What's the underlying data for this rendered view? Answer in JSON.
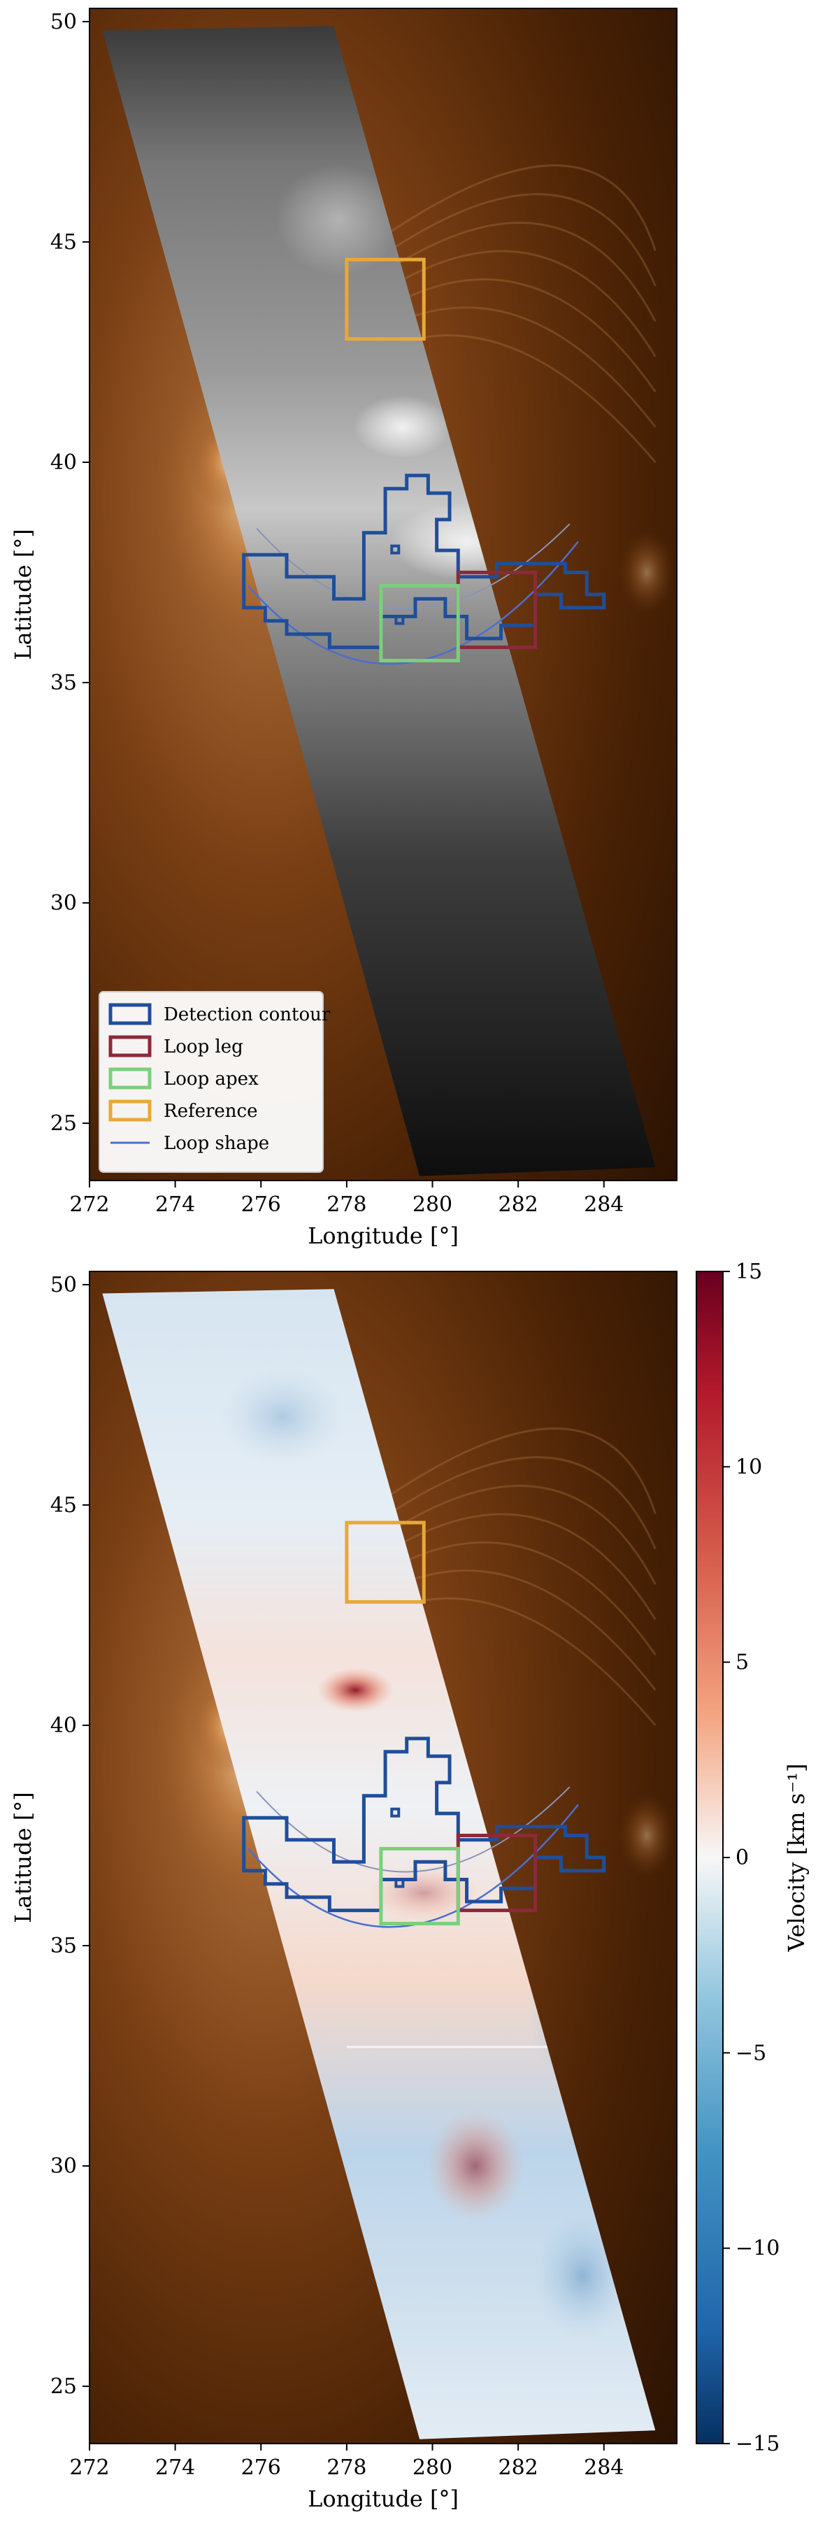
{
  "chart_data": [
    {
      "type": "heatmap",
      "panel": "intensity",
      "xlabel": "Longitude [°]",
      "ylabel": "Latitude [°]",
      "xlim": [
        272,
        285.7
      ],
      "ylim": [
        23.7,
        50.3
      ],
      "xticks": [
        272,
        274,
        276,
        278,
        280,
        282,
        284
      ],
      "yticks": [
        25,
        30,
        35,
        40,
        45,
        50
      ],
      "background": "coronal EUV image (copper colormap)",
      "overlay": "grayscale intensity in slanted raster strip",
      "regions": [
        {
          "name": "Detection contour",
          "color": "#1f4e9a"
        },
        {
          "name": "Loop leg",
          "color": "#8b2a3a",
          "lon": [
            280.6,
            282.4
          ],
          "lat": [
            35.8,
            37.5
          ]
        },
        {
          "name": "Loop apex",
          "color": "#7ccf7c",
          "lon": [
            278.8,
            280.6
          ],
          "lat": [
            35.5,
            37.2
          ]
        },
        {
          "name": "Reference",
          "color": "#e8a838",
          "lon": [
            278.0,
            279.8
          ],
          "lat": [
            42.8,
            44.6
          ]
        },
        {
          "name": "Loop shape",
          "color": "#4a6fd0"
        }
      ],
      "legend_position": "lower-left"
    },
    {
      "type": "heatmap",
      "panel": "velocity",
      "xlabel": "Longitude [°]",
      "ylabel": "Latitude [°]",
      "xlim": [
        272,
        285.7
      ],
      "ylim": [
        23.7,
        50.3
      ],
      "xticks": [
        272,
        274,
        276,
        278,
        280,
        282,
        284
      ],
      "yticks": [
        25,
        30,
        35,
        40,
        45,
        50
      ],
      "colorbar": {
        "label": "Velocity [km s⁻¹]",
        "range": [
          -15,
          15
        ],
        "ticks": [
          -15,
          -10,
          -5,
          0,
          5,
          10,
          15
        ],
        "colormap": "RdBu_r"
      },
      "regions": [
        {
          "name": "Detection contour",
          "color": "#1f4e9a"
        },
        {
          "name": "Loop leg",
          "color": "#8b2a3a",
          "lon": [
            280.6,
            282.4
          ],
          "lat": [
            35.8,
            37.5
          ]
        },
        {
          "name": "Loop apex",
          "color": "#7ccf7c",
          "lon": [
            278.8,
            280.6
          ],
          "lat": [
            35.5,
            37.2
          ]
        },
        {
          "name": "Reference",
          "color": "#e8a838",
          "lon": [
            278.0,
            279.8
          ],
          "lat": [
            42.8,
            44.6
          ]
        },
        {
          "name": "Loop shape",
          "color": "#4a6fd0"
        }
      ]
    }
  ],
  "legend": [
    {
      "label": "Detection contour",
      "color": "#1f4e9a",
      "kind": "box"
    },
    {
      "label": "Loop leg",
      "color": "#8b2a3a",
      "kind": "box"
    },
    {
      "label": "Loop apex",
      "color": "#7ccf7c",
      "kind": "box"
    },
    {
      "label": "Reference",
      "color": "#e8a838",
      "kind": "box"
    },
    {
      "label": "Loop shape",
      "color": "#4a6fd0",
      "kind": "line"
    }
  ]
}
